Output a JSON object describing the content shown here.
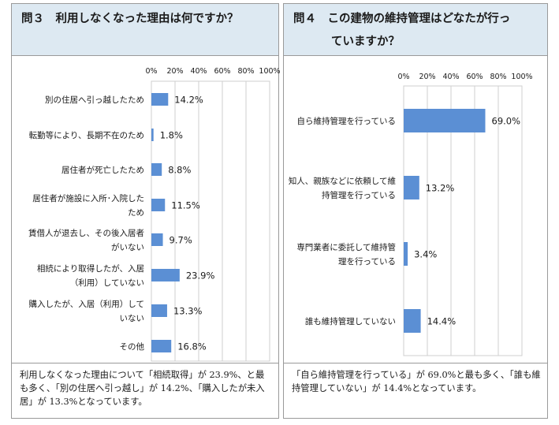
{
  "q3": {
    "title": "問３　利用しなくなった理由は何ですか？",
    "caption": "利用しなくなった理由について「相続取得」が 23.9%、と最も多く、「別の住居へ引っ越し」が 14.2%、「購入したが未入居」が 13.3%となっています。"
  },
  "q4": {
    "title_line1": "問４　この建物の維持管理はどなたが行っ",
    "title_line2": "ていますか？",
    "caption": "「自ら維持管理を行っている」が 69.0%と最も多く、「誰も維持管理していない」が 14.4%となっています。"
  },
  "colors": {
    "bar": "#5b8fd4",
    "header_bg": "#dde9f2",
    "border": "#9a9a9a",
    "grid": "#cfcfcf"
  },
  "chart_data": [
    {
      "id": "q3",
      "type": "bar",
      "orientation": "horizontal",
      "categories": [
        [
          "別の住居へ引っ越したため"
        ],
        [
          "転勤等により、長期不在のため"
        ],
        [
          "居住者が死亡したため"
        ],
        [
          "居住者が施設に入所･入院した",
          "ため"
        ],
        [
          "賃借人が退去し、その後入居者",
          "がいない"
        ],
        [
          "相続により取得したが、入居",
          "（利用）していない"
        ],
        [
          "購入したが、入居（利用）して",
          "いない"
        ],
        [
          "その他"
        ]
      ],
      "values": [
        14.2,
        1.8,
        8.8,
        11.5,
        9.7,
        23.9,
        13.3,
        16.8
      ],
      "value_labels": [
        "14.2%",
        "1.8%",
        "8.8%",
        "11.5%",
        "9.7%",
        "23.9%",
        "13.3%",
        "16.8%"
      ],
      "xlim": [
        0,
        100
      ],
      "ticks": [
        "0%",
        "20%",
        "40%",
        "60%",
        "80%",
        "100%"
      ]
    },
    {
      "id": "q4",
      "type": "bar",
      "orientation": "horizontal",
      "categories": [
        [
          "自ら維持管理を行っている"
        ],
        [
          "知人、親族などに依頼して維",
          "持管理を行っている"
        ],
        [
          "専門業者に委託して維持管",
          "理を行っている"
        ],
        [
          "誰も維持管理していない"
        ]
      ],
      "values": [
        69.0,
        13.2,
        3.4,
        14.4
      ],
      "value_labels": [
        "69.0%",
        "13.2%",
        "3.4%",
        "14.4%"
      ],
      "xlim": [
        0,
        100
      ],
      "ticks": [
        "0%",
        "20%",
        "40%",
        "60%",
        "80%",
        "100%"
      ]
    }
  ]
}
